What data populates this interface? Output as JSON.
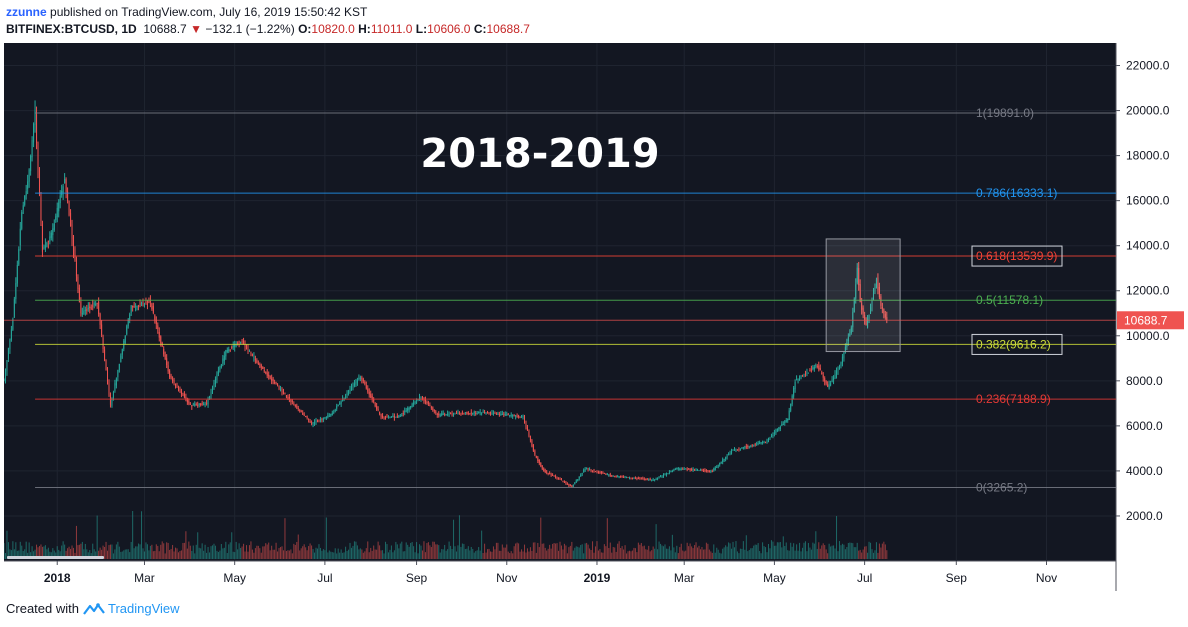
{
  "header": {
    "author": "zzunne",
    "published_text": "published on TradingView.com, July 16, 2019 15:50:42 KST",
    "symbol": "BITFINEX:BTCUSD, 1D",
    "last": "10688.7",
    "change": "−132.1 (−1.22%)",
    "o_label": "O:",
    "o_value": "10820.0",
    "h_label": "H:",
    "h_value": "11011.0",
    "l_label": "L:",
    "l_value": "10606.0",
    "c_label": "C:",
    "c_value": "10688.7"
  },
  "footer": {
    "created_with": "Created with",
    "brand": "TradingView"
  },
  "colors": {
    "background": "#131722",
    "grid": "#1f2430",
    "up": "#26a69a",
    "down": "#ef5350",
    "fib_1": "#787b86",
    "fib_786": "#2196f3",
    "fib_618": "#f44336",
    "fib_5": "#4caf50",
    "fib_382": "#cddc39",
    "fib_236": "#e53935",
    "fib_0": "#787b86",
    "price_tag": "#ef5350",
    "axis_text": "#b2b5be"
  },
  "chart_data": {
    "type": "candlestick",
    "title": "2018-2019",
    "ylim": [
      0,
      23000
    ],
    "y_ticks": [
      22000,
      20000,
      18000,
      16000,
      14000,
      12000,
      10000,
      8000,
      6000,
      4000,
      2000
    ],
    "y_tick_labels": [
      "22000.0",
      "20000.0",
      "18000.0",
      "16000.0",
      "14000.0",
      "12000.0",
      "10000.0",
      "8000.0",
      "6000.0",
      "4000.0",
      "2000.0"
    ],
    "x_tick_labels": [
      "2018",
      "Mar",
      "May",
      "Jul",
      "Sep",
      "Nov",
      "2019",
      "Mar",
      "May",
      "Jul",
      "Sep",
      "Nov"
    ],
    "x_tick_bold": [
      true,
      false,
      false,
      false,
      false,
      false,
      true,
      false,
      false,
      false,
      false,
      false
    ],
    "x_tick_dates": [
      "2018-01-01",
      "2018-03-01",
      "2018-05-01",
      "2018-07-01",
      "2018-09-01",
      "2018-11-01",
      "2019-01-01",
      "2019-03-01",
      "2019-05-01",
      "2019-07-01",
      "2019-09-01",
      "2019-11-01"
    ],
    "x_range": [
      "2017-11-26",
      "2019-12-18"
    ],
    "price_series": [
      {
        "date": "2017-11-26",
        "value": 8000
      },
      {
        "date": "2017-12-02",
        "value": 10800
      },
      {
        "date": "2017-12-08",
        "value": 15500
      },
      {
        "date": "2017-12-12",
        "value": 16800
      },
      {
        "date": "2017-12-17",
        "value": 19891
      },
      {
        "date": "2017-12-22",
        "value": 13800
      },
      {
        "date": "2017-12-28",
        "value": 14500
      },
      {
        "date": "2018-01-06",
        "value": 17000
      },
      {
        "date": "2018-01-12",
        "value": 13800
      },
      {
        "date": "2018-01-17",
        "value": 11000
      },
      {
        "date": "2018-01-28",
        "value": 11500
      },
      {
        "date": "2018-02-06",
        "value": 6900
      },
      {
        "date": "2018-02-20",
        "value": 11300
      },
      {
        "date": "2018-03-05",
        "value": 11500
      },
      {
        "date": "2018-03-18",
        "value": 8200
      },
      {
        "date": "2018-04-01",
        "value": 6900
      },
      {
        "date": "2018-04-12",
        "value": 7000
      },
      {
        "date": "2018-04-25",
        "value": 9300
      },
      {
        "date": "2018-05-05",
        "value": 9800
      },
      {
        "date": "2018-05-20",
        "value": 8500
      },
      {
        "date": "2018-06-01",
        "value": 7600
      },
      {
        "date": "2018-06-22",
        "value": 6100
      },
      {
        "date": "2018-07-05",
        "value": 6500
      },
      {
        "date": "2018-07-25",
        "value": 8200
      },
      {
        "date": "2018-08-08",
        "value": 6400
      },
      {
        "date": "2018-08-20",
        "value": 6400
      },
      {
        "date": "2018-09-04",
        "value": 7300
      },
      {
        "date": "2018-09-15",
        "value": 6500
      },
      {
        "date": "2018-10-15",
        "value": 6600
      },
      {
        "date": "2018-11-12",
        "value": 6400
      },
      {
        "date": "2018-11-20",
        "value": 4700
      },
      {
        "date": "2018-11-26",
        "value": 4000
      },
      {
        "date": "2018-12-15",
        "value": 3300
      },
      {
        "date": "2018-12-24",
        "value": 4100
      },
      {
        "date": "2019-01-10",
        "value": 3800
      },
      {
        "date": "2019-02-08",
        "value": 3600
      },
      {
        "date": "2019-02-24",
        "value": 4100
      },
      {
        "date": "2019-03-20",
        "value": 4000
      },
      {
        "date": "2019-04-02",
        "value": 4900
      },
      {
        "date": "2019-04-25",
        "value": 5300
      },
      {
        "date": "2019-05-10",
        "value": 6300
      },
      {
        "date": "2019-05-15",
        "value": 8000
      },
      {
        "date": "2019-05-30",
        "value": 8700
      },
      {
        "date": "2019-06-06",
        "value": 7700
      },
      {
        "date": "2019-06-15",
        "value": 8800
      },
      {
        "date": "2019-06-22",
        "value": 10400
      },
      {
        "date": "2019-06-26",
        "value": 13000
      },
      {
        "date": "2019-06-28",
        "value": 11500
      },
      {
        "date": "2019-07-02",
        "value": 10400
      },
      {
        "date": "2019-07-09",
        "value": 12500
      },
      {
        "date": "2019-07-12",
        "value": 11300
      },
      {
        "date": "2019-07-16",
        "value": 10688.7
      }
    ],
    "volume_level": 0.09,
    "fib_levels": [
      {
        "label": "1(19891.0)",
        "value": 19891.0,
        "color": "#787b86",
        "boxed": false
      },
      {
        "label": "0.786(16333.1)",
        "value": 16333.1,
        "color": "#2196f3",
        "boxed": false
      },
      {
        "label": "0.618(13539.9)",
        "value": 13539.9,
        "color": "#f44336",
        "boxed": true
      },
      {
        "label": "0.5(11578.1)",
        "value": 11578.1,
        "color": "#4caf50",
        "boxed": false
      },
      {
        "label": "0.382(9616.2)",
        "value": 9616.2,
        "color": "#cddc39",
        "boxed": true
      },
      {
        "label": "0.236(7188.9)",
        "value": 7188.9,
        "color": "#e53935",
        "boxed": false
      },
      {
        "label": "0(3265.2)",
        "value": 3265.2,
        "color": "#787b86",
        "boxed": false
      }
    ],
    "last_price": 10688.7,
    "last_price_label": "10688.7",
    "highlight_box": {
      "from": "2019-06-05",
      "to": "2019-07-25",
      "low": 9300,
      "high": 14300
    }
  }
}
